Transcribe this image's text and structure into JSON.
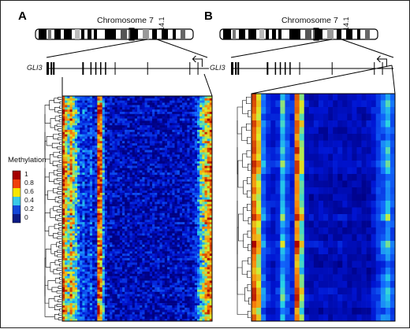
{
  "panels": [
    {
      "letter": "A",
      "chromosome": "Chromosome 7",
      "band": "14.1",
      "gene": "GLI3"
    },
    {
      "letter": "B",
      "chromosome": "Chromosome 7",
      "band": "14.1",
      "gene": "GLI3"
    }
  ],
  "legend": {
    "title": "Methylation",
    "ticks": [
      "1",
      "0.8",
      "0.6",
      "0.4",
      "0.2",
      "0"
    ],
    "colors": [
      "#a50000",
      "#f0400a",
      "#f7e600",
      "#39c9e8",
      "#1346d8",
      "#0b1b85"
    ]
  },
  "chart_data": [
    {
      "type": "heatmap",
      "panel": "A",
      "value_range": [
        0,
        1
      ],
      "colorscale": "jet",
      "n_rows": 100,
      "n_cols": 60,
      "column_profile": [
        0.85,
        0.7,
        0.55,
        0.75,
        0.6,
        0.5,
        0.35,
        0.25,
        0.3,
        0.2,
        0.2,
        0.3,
        0.15,
        0.2,
        0.85,
        0.8,
        0.4,
        0.15,
        0.1,
        0.12,
        0.1,
        0.08,
        0.1,
        0.09,
        0.1,
        0.08,
        0.1,
        0.09,
        0.1,
        0.08,
        0.1,
        0.09,
        0.1,
        0.08,
        0.1,
        0.09,
        0.1,
        0.08,
        0.1,
        0.09,
        0.1,
        0.08,
        0.1,
        0.09,
        0.1,
        0.08,
        0.1,
        0.09,
        0.1,
        0.08,
        0.12,
        0.1,
        0.15,
        0.2,
        0.35,
        0.5,
        0.6,
        0.7,
        0.75,
        0.8
      ]
    },
    {
      "type": "heatmap",
      "panel": "B",
      "value_range": [
        0,
        1
      ],
      "colorscale": "jet",
      "n_rows": 34,
      "n_cols": 30,
      "column_profile": [
        0.85,
        0.7,
        0.35,
        0.2,
        0.15,
        0.2,
        0.5,
        0.3,
        0.2,
        0.85,
        0.6,
        0.12,
        0.1,
        0.1,
        0.1,
        0.1,
        0.1,
        0.1,
        0.1,
        0.1,
        0.1,
        0.1,
        0.1,
        0.1,
        0.1,
        0.15,
        0.25,
        0.35,
        0.45,
        0.3
      ]
    }
  ]
}
